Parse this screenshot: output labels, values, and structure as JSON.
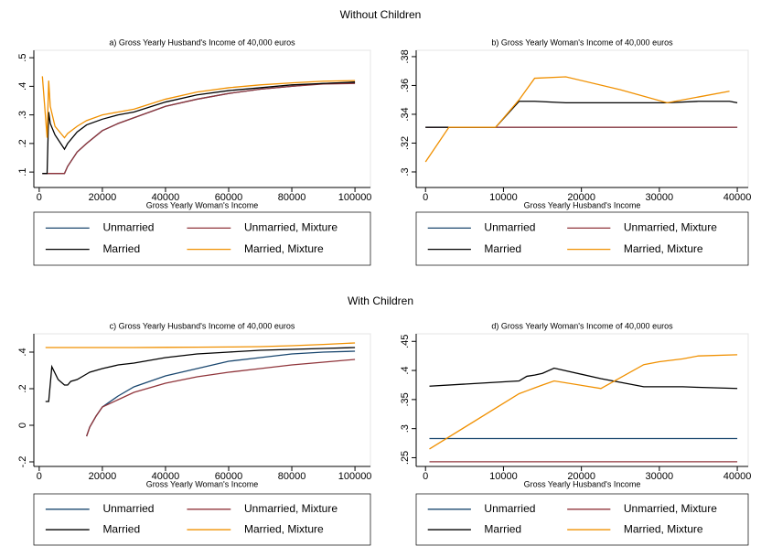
{
  "sections": [
    "Without Children",
    "With Children"
  ],
  "chart_data": [
    {
      "type": "line",
      "title": "a) Gross Yearly Husband's Income of 40,000 euros",
      "x_label": "Gross Yearly Woman's Income",
      "legend": "below",
      "x": [
        1000,
        2500,
        3000,
        3500,
        5000,
        8000,
        9000,
        12000,
        15000,
        20000,
        25000,
        30000,
        40000,
        50000,
        60000,
        70000,
        80000,
        90000,
        100000
      ],
      "series": [
        {
          "name": "Unmarried",
          "color": "#1a476f",
          "values": [
            0.095,
            0.095,
            0.095,
            0.095,
            0.095,
            0.095,
            0.12,
            0.17,
            0.2,
            0.245,
            0.27,
            0.29,
            0.33,
            0.355,
            0.375,
            0.39,
            0.4,
            0.41,
            0.413
          ]
        },
        {
          "name": "Unmarried, Mixture",
          "color": "#90353b",
          "values": [
            0.095,
            0.095,
            0.095,
            0.095,
            0.095,
            0.095,
            0.12,
            0.17,
            0.2,
            0.245,
            0.27,
            0.29,
            0.33,
            0.355,
            0.375,
            0.39,
            0.4,
            0.408,
            0.41
          ]
        },
        {
          "name": "Married",
          "color": "#000000",
          "values": [
            0.095,
            0.095,
            0.31,
            0.27,
            0.23,
            0.18,
            0.2,
            0.24,
            0.265,
            0.285,
            0.3,
            0.31,
            0.345,
            0.37,
            0.385,
            0.395,
            0.405,
            0.41,
            0.415
          ]
        },
        {
          "name": "Married, Mixture",
          "color": "#f09000",
          "values": [
            0.435,
            0.22,
            0.42,
            0.33,
            0.26,
            0.22,
            0.235,
            0.26,
            0.28,
            0.3,
            0.31,
            0.32,
            0.355,
            0.38,
            0.395,
            0.405,
            0.412,
            0.418,
            0.42
          ]
        }
      ],
      "xlim": [
        -1700,
        104900
      ],
      "ylim": [
        0.046,
        0.526
      ],
      "xticks": [
        0,
        20000,
        40000,
        60000,
        80000,
        100000
      ],
      "yticks": [
        {
          "value": 0.1,
          "label": ".1"
        },
        {
          "value": 0.2,
          "label": ".2"
        },
        {
          "value": 0.3,
          "label": ".3"
        },
        {
          "value": 0.4,
          "label": ".4"
        },
        {
          "value": 0.5,
          "label": ".5"
        }
      ]
    },
    {
      "type": "line",
      "title": "b) Gross Yearly Woman's Income of 40,000 euros",
      "x_label": "Gross Yearly Husband's Income",
      "legend": "below",
      "x": [
        0,
        3000,
        9000,
        12000,
        14000,
        18000,
        25000,
        31000,
        35000,
        39000,
        40000
      ],
      "series": [
        {
          "name": "Unmarried",
          "color": "#1a476f",
          "values": [
            0.331,
            0.331,
            0.331,
            0.331,
            0.331,
            0.331,
            0.331,
            0.331,
            0.331,
            0.331,
            0.331
          ]
        },
        {
          "name": "Unmarried, Mixture",
          "color": "#90353b",
          "values": [
            0.331,
            0.331,
            0.331,
            0.331,
            0.331,
            0.331,
            0.331,
            0.331,
            0.331,
            0.331,
            0.331
          ]
        },
        {
          "name": "Married",
          "color": "#000000",
          "values": [
            0.331,
            0.331,
            0.331,
            0.349,
            0.349,
            0.348,
            0.348,
            0.348,
            0.349,
            0.349,
            0.348
          ]
        },
        {
          "name": "Married, Mixture",
          "color": "#f09000",
          "values": [
            0.307,
            0.331,
            0.331,
            0.35,
            0.365,
            0.366,
            0.357,
            0.348,
            0.352,
            0.356,
            null
          ]
        }
      ],
      "xlim": [
        -1200,
        41400
      ],
      "ylim": [
        0.2892,
        0.3844
      ],
      "xticks": [
        0,
        10000,
        20000,
        30000,
        40000
      ],
      "yticks": [
        {
          "value": 0.3,
          "label": ".3"
        },
        {
          "value": 0.32,
          "label": ".32"
        },
        {
          "value": 0.34,
          "label": ".34"
        },
        {
          "value": 0.36,
          "label": ".36"
        },
        {
          "value": 0.38,
          "label": ".38"
        }
      ]
    },
    {
      "type": "line",
      "title": "c) Gross Yearly Husband's Income of 40,000 euros",
      "x_label": "Gross Yearly Woman's Income",
      "legend": "below",
      "x": [
        2000,
        3000,
        4000,
        6000,
        8000,
        9000,
        10000,
        12000,
        15000,
        16000,
        18000,
        20000,
        25000,
        30000,
        40000,
        50000,
        60000,
        70000,
        80000,
        90000,
        100000
      ],
      "series": [
        {
          "name": "Unmarried",
          "color": "#1a476f",
          "values": [
            null,
            null,
            null,
            null,
            null,
            null,
            null,
            null,
            -0.06,
            -0.01,
            0.05,
            0.1,
            0.16,
            0.21,
            0.27,
            0.31,
            0.35,
            0.37,
            0.39,
            0.4,
            0.405
          ]
        },
        {
          "name": "Unmarried, Mixture",
          "color": "#90353b",
          "values": [
            null,
            null,
            null,
            null,
            null,
            null,
            null,
            null,
            -0.06,
            -0.01,
            0.05,
            0.1,
            0.14,
            0.18,
            0.23,
            0.265,
            0.29,
            0.31,
            0.33,
            0.345,
            0.36
          ]
        },
        {
          "name": "Married",
          "color": "#000000",
          "values": [
            0.13,
            0.13,
            0.32,
            0.25,
            0.22,
            0.22,
            0.24,
            0.25,
            0.28,
            0.29,
            0.3,
            0.31,
            0.33,
            0.34,
            0.37,
            0.39,
            0.4,
            0.41,
            0.415,
            0.42,
            0.425
          ]
        },
        {
          "name": "Married, Mixture",
          "color": "#f09000",
          "values": [
            0.425,
            0.425,
            0.425,
            0.425,
            0.425,
            0.425,
            0.425,
            0.425,
            0.425,
            0.425,
            0.425,
            0.425,
            0.425,
            0.425,
            0.426,
            0.427,
            0.428,
            0.43,
            0.435,
            0.442,
            0.45
          ]
        }
      ],
      "xlim": [
        -1700,
        104900
      ],
      "ylim": [
        -0.225,
        0.5
      ],
      "xticks": [
        0,
        20000,
        40000,
        60000,
        80000,
        100000
      ],
      "yticks": [
        {
          "value": -0.2,
          "label": "-.2"
        },
        0,
        {
          "value": 0.2,
          "label": ".2"
        },
        {
          "value": 0.4,
          "label": ".4"
        }
      ]
    },
    {
      "type": "line",
      "title": "d) Gross Yearly Woman's Income of 40,000 euros",
      "x_label": "Gross Yearly Husband's Income",
      "legend": "below",
      "x": [
        500,
        12000,
        13000,
        14000,
        15000,
        16500,
        22500,
        28000,
        30000,
        33000,
        35000,
        40000
      ],
      "series": [
        {
          "name": "Unmarried",
          "color": "#1a476f",
          "values": [
            0.283,
            0.283,
            0.283,
            0.283,
            0.283,
            0.283,
            0.283,
            0.283,
            0.283,
            0.283,
            0.283,
            0.283
          ]
        },
        {
          "name": "Unmarried, Mixture",
          "color": "#90353b",
          "values": [
            0.243,
            0.243,
            0.243,
            0.243,
            0.243,
            0.243,
            0.243,
            0.243,
            0.243,
            0.243,
            0.243,
            0.243
          ]
        },
        {
          "name": "Married",
          "color": "#000000",
          "values": [
            0.373,
            0.382,
            0.39,
            0.392,
            0.395,
            0.404,
            0.386,
            0.372,
            0.372,
            0.372,
            0.371,
            0.369
          ]
        },
        {
          "name": "Married, Mixture",
          "color": "#f09000",
          "values": [
            0.265,
            0.36,
            0.365,
            0.37,
            0.375,
            0.382,
            0.369,
            0.41,
            0.415,
            0.42,
            0.425,
            0.427
          ]
        }
      ],
      "xlim": [
        -1200,
        41400
      ],
      "ylim": [
        0.235,
        0.463
      ],
      "xticks": [
        0,
        10000,
        20000,
        30000,
        40000
      ],
      "yticks": [
        {
          "value": 0.25,
          "label": ".25"
        },
        {
          "value": 0.3,
          "label": ".3"
        },
        {
          "value": 0.35,
          "label": ".35"
        },
        {
          "value": 0.4,
          "label": ".4"
        },
        {
          "value": 0.45,
          "label": ".45"
        }
      ]
    }
  ]
}
